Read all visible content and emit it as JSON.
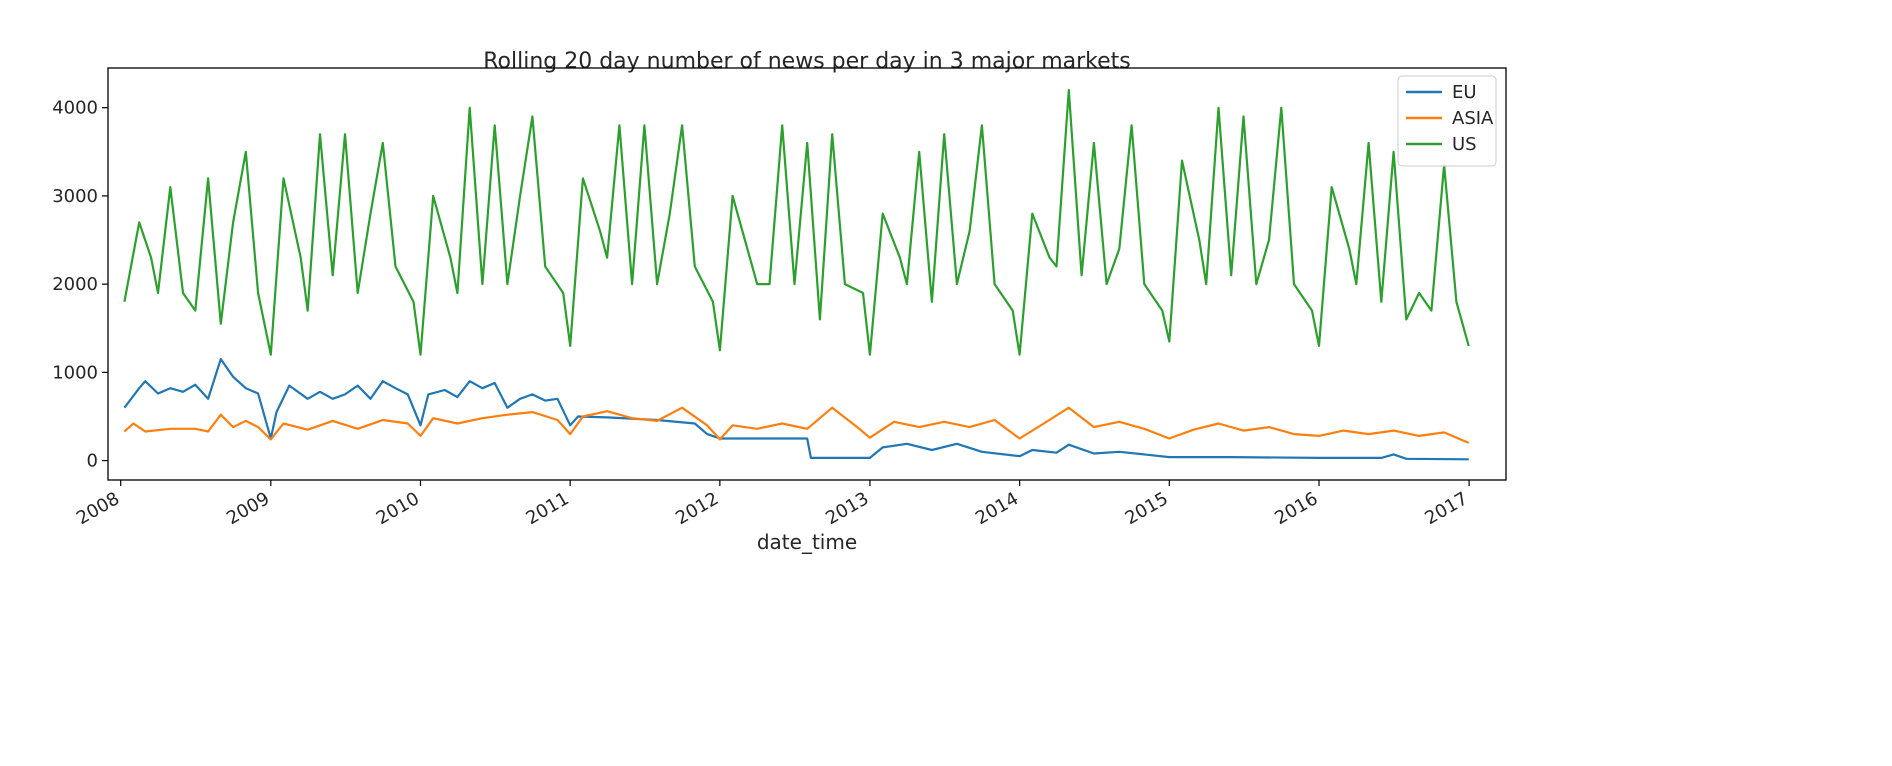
{
  "chart_data": {
    "type": "line",
    "title": "Rolling 20 day number of news per day in 3 major markets",
    "xlabel": "date_time",
    "ylabel": "",
    "x_ticks": [
      "2008",
      "2009",
      "2010",
      "2011",
      "2012",
      "2013",
      "2014",
      "2015",
      "2016",
      "2017"
    ],
    "y_ticks": [
      0,
      1000,
      2000,
      3000,
      4000
    ],
    "xlim": [
      "2007-12-01",
      "2017-04-01"
    ],
    "ylim": [
      -220,
      4450
    ],
    "grid": false,
    "legend_position": "top-right",
    "series": [
      {
        "name": "EU",
        "color": "#1f77b4",
        "points": [
          [
            "2008-01-10",
            600
          ],
          [
            "2008-02-15",
            820
          ],
          [
            "2008-03-01",
            900
          ],
          [
            "2008-04-01",
            760
          ],
          [
            "2008-05-01",
            820
          ],
          [
            "2008-06-01",
            780
          ],
          [
            "2008-07-01",
            860
          ],
          [
            "2008-08-01",
            700
          ],
          [
            "2008-09-01",
            1150
          ],
          [
            "2008-10-01",
            950
          ],
          [
            "2008-11-01",
            820
          ],
          [
            "2008-12-01",
            760
          ],
          [
            "2009-01-01",
            250
          ],
          [
            "2009-01-15",
            550
          ],
          [
            "2009-02-15",
            850
          ],
          [
            "2009-04-01",
            700
          ],
          [
            "2009-05-01",
            780
          ],
          [
            "2009-06-01",
            700
          ],
          [
            "2009-07-01",
            750
          ],
          [
            "2009-08-01",
            850
          ],
          [
            "2009-09-01",
            700
          ],
          [
            "2009-10-01",
            900
          ],
          [
            "2009-11-01",
            820
          ],
          [
            "2009-12-01",
            750
          ],
          [
            "2010-01-01",
            400
          ],
          [
            "2010-01-20",
            750
          ],
          [
            "2010-03-01",
            800
          ],
          [
            "2010-04-01",
            720
          ],
          [
            "2010-05-01",
            900
          ],
          [
            "2010-06-01",
            820
          ],
          [
            "2010-07-01",
            880
          ],
          [
            "2010-08-01",
            600
          ],
          [
            "2010-09-01",
            700
          ],
          [
            "2010-10-01",
            750
          ],
          [
            "2010-11-01",
            680
          ],
          [
            "2010-12-01",
            700
          ],
          [
            "2011-01-01",
            400
          ],
          [
            "2011-01-20",
            500
          ],
          [
            "2011-04-01",
            490
          ],
          [
            "2011-08-01",
            460
          ],
          [
            "2011-11-01",
            420
          ],
          [
            "2011-12-01",
            300
          ],
          [
            "2012-01-01",
            250
          ],
          [
            "2012-08-01",
            250
          ],
          [
            "2012-08-10",
            30
          ],
          [
            "2013-01-01",
            30
          ],
          [
            "2013-02-01",
            150
          ],
          [
            "2013-04-01",
            190
          ],
          [
            "2013-06-01",
            120
          ],
          [
            "2013-08-01",
            190
          ],
          [
            "2013-10-01",
            100
          ],
          [
            "2014-01-01",
            50
          ],
          [
            "2014-02-01",
            120
          ],
          [
            "2014-04-01",
            90
          ],
          [
            "2014-05-01",
            180
          ],
          [
            "2014-07-01",
            80
          ],
          [
            "2014-09-01",
            100
          ],
          [
            "2015-01-01",
            40
          ],
          [
            "2015-06-01",
            40
          ],
          [
            "2016-01-01",
            30
          ],
          [
            "2016-06-01",
            30
          ],
          [
            "2016-07-01",
            70
          ],
          [
            "2016-08-01",
            20
          ],
          [
            "2016-12-31",
            15
          ]
        ]
      },
      {
        "name": "ASIA",
        "color": "#ff7f0e",
        "points": [
          [
            "2008-01-10",
            330
          ],
          [
            "2008-02-01",
            420
          ],
          [
            "2008-03-01",
            330
          ],
          [
            "2008-05-01",
            360
          ],
          [
            "2008-07-01",
            360
          ],
          [
            "2008-08-01",
            330
          ],
          [
            "2008-09-01",
            520
          ],
          [
            "2008-10-01",
            380
          ],
          [
            "2008-11-01",
            450
          ],
          [
            "2008-12-01",
            380
          ],
          [
            "2009-01-01",
            240
          ],
          [
            "2009-02-01",
            420
          ],
          [
            "2009-04-01",
            350
          ],
          [
            "2009-06-01",
            450
          ],
          [
            "2009-08-01",
            360
          ],
          [
            "2009-10-01",
            460
          ],
          [
            "2009-12-01",
            420
          ],
          [
            "2010-01-01",
            280
          ],
          [
            "2010-02-01",
            480
          ],
          [
            "2010-04-01",
            420
          ],
          [
            "2010-06-01",
            480
          ],
          [
            "2010-08-01",
            520
          ],
          [
            "2010-10-01",
            550
          ],
          [
            "2010-12-01",
            460
          ],
          [
            "2011-01-01",
            300
          ],
          [
            "2011-02-01",
            500
          ],
          [
            "2011-04-01",
            560
          ],
          [
            "2011-06-01",
            480
          ],
          [
            "2011-08-01",
            450
          ],
          [
            "2011-10-01",
            600
          ],
          [
            "2011-12-01",
            400
          ],
          [
            "2012-01-01",
            240
          ],
          [
            "2012-02-01",
            400
          ],
          [
            "2012-04-01",
            360
          ],
          [
            "2012-06-01",
            420
          ],
          [
            "2012-08-01",
            360
          ],
          [
            "2012-10-01",
            600
          ],
          [
            "2012-12-01",
            380
          ],
          [
            "2013-01-01",
            260
          ],
          [
            "2013-03-01",
            440
          ],
          [
            "2013-05-01",
            380
          ],
          [
            "2013-07-01",
            440
          ],
          [
            "2013-09-01",
            380
          ],
          [
            "2013-11-01",
            460
          ],
          [
            "2014-01-01",
            250
          ],
          [
            "2014-03-01",
            420
          ],
          [
            "2014-05-01",
            600
          ],
          [
            "2014-07-01",
            380
          ],
          [
            "2014-09-01",
            440
          ],
          [
            "2014-11-01",
            360
          ],
          [
            "2015-01-01",
            250
          ],
          [
            "2015-03-01",
            350
          ],
          [
            "2015-05-01",
            420
          ],
          [
            "2015-07-01",
            340
          ],
          [
            "2015-09-01",
            380
          ],
          [
            "2015-11-01",
            300
          ],
          [
            "2016-01-01",
            280
          ],
          [
            "2016-03-01",
            340
          ],
          [
            "2016-05-01",
            300
          ],
          [
            "2016-07-01",
            340
          ],
          [
            "2016-09-01",
            280
          ],
          [
            "2016-11-01",
            320
          ],
          [
            "2016-12-31",
            200
          ]
        ]
      },
      {
        "name": "US",
        "color": "#2ca02c",
        "points": [
          [
            "2008-01-10",
            1800
          ],
          [
            "2008-02-15",
            2700
          ],
          [
            "2008-03-15",
            2300
          ],
          [
            "2008-04-01",
            1900
          ],
          [
            "2008-05-01",
            3100
          ],
          [
            "2008-06-01",
            1900
          ],
          [
            "2008-07-01",
            1700
          ],
          [
            "2008-08-01",
            3200
          ],
          [
            "2008-09-01",
            1550
          ],
          [
            "2008-10-01",
            2700
          ],
          [
            "2008-11-01",
            3500
          ],
          [
            "2008-12-01",
            1900
          ],
          [
            "2009-01-01",
            1200
          ],
          [
            "2009-02-01",
            3200
          ],
          [
            "2009-03-15",
            2300
          ],
          [
            "2009-04-01",
            1700
          ],
          [
            "2009-05-01",
            3700
          ],
          [
            "2009-06-01",
            2100
          ],
          [
            "2009-07-01",
            3700
          ],
          [
            "2009-08-01",
            1900
          ],
          [
            "2009-09-01",
            2800
          ],
          [
            "2009-10-01",
            3600
          ],
          [
            "2009-11-01",
            2200
          ],
          [
            "2009-12-15",
            1800
          ],
          [
            "2010-01-01",
            1200
          ],
          [
            "2010-02-01",
            3000
          ],
          [
            "2010-03-15",
            2300
          ],
          [
            "2010-04-01",
            1900
          ],
          [
            "2010-05-01",
            4000
          ],
          [
            "2010-06-01",
            2000
          ],
          [
            "2010-07-01",
            3800
          ],
          [
            "2010-08-01",
            2000
          ],
          [
            "2010-09-01",
            3000
          ],
          [
            "2010-10-01",
            3900
          ],
          [
            "2010-11-01",
            2200
          ],
          [
            "2010-12-15",
            1900
          ],
          [
            "2011-01-01",
            1300
          ],
          [
            "2011-02-01",
            3200
          ],
          [
            "2011-03-15",
            2600
          ],
          [
            "2011-04-01",
            2300
          ],
          [
            "2011-05-01",
            3800
          ],
          [
            "2011-06-01",
            2000
          ],
          [
            "2011-07-01",
            3800
          ],
          [
            "2011-08-01",
            2000
          ],
          [
            "2011-09-01",
            2800
          ],
          [
            "2011-10-01",
            3800
          ],
          [
            "2011-11-01",
            2200
          ],
          [
            "2011-12-15",
            1800
          ],
          [
            "2012-01-01",
            1250
          ],
          [
            "2012-02-01",
            3000
          ],
          [
            "2012-04-01",
            2000
          ],
          [
            "2012-05-01",
            2000
          ],
          [
            "2012-06-01",
            3800
          ],
          [
            "2012-07-01",
            2000
          ],
          [
            "2012-08-01",
            3600
          ],
          [
            "2012-09-01",
            1600
          ],
          [
            "2012-10-01",
            3700
          ],
          [
            "2012-11-01",
            2000
          ],
          [
            "2012-12-15",
            1900
          ],
          [
            "2013-01-01",
            1200
          ],
          [
            "2013-02-01",
            2800
          ],
          [
            "2013-03-15",
            2300
          ],
          [
            "2013-04-01",
            2000
          ],
          [
            "2013-05-01",
            3500
          ],
          [
            "2013-06-01",
            1800
          ],
          [
            "2013-07-01",
            3700
          ],
          [
            "2013-08-01",
            2000
          ],
          [
            "2013-09-01",
            2600
          ],
          [
            "2013-10-01",
            3800
          ],
          [
            "2013-11-01",
            2000
          ],
          [
            "2013-12-15",
            1700
          ],
          [
            "2014-01-01",
            1200
          ],
          [
            "2014-02-01",
            2800
          ],
          [
            "2014-03-15",
            2300
          ],
          [
            "2014-04-01",
            2200
          ],
          [
            "2014-05-01",
            4200
          ],
          [
            "2014-06-01",
            2100
          ],
          [
            "2014-07-01",
            3600
          ],
          [
            "2014-08-01",
            2000
          ],
          [
            "2014-09-01",
            2400
          ],
          [
            "2014-10-01",
            3800
          ],
          [
            "2014-11-01",
            2000
          ],
          [
            "2014-12-15",
            1700
          ],
          [
            "2015-01-01",
            1350
          ],
          [
            "2015-02-01",
            3400
          ],
          [
            "2015-03-15",
            2500
          ],
          [
            "2015-04-01",
            2000
          ],
          [
            "2015-05-01",
            4000
          ],
          [
            "2015-06-01",
            2100
          ],
          [
            "2015-07-01",
            3900
          ],
          [
            "2015-08-01",
            2000
          ],
          [
            "2015-09-01",
            2500
          ],
          [
            "2015-10-01",
            4000
          ],
          [
            "2015-11-01",
            2000
          ],
          [
            "2015-12-15",
            1700
          ],
          [
            "2016-01-01",
            1300
          ],
          [
            "2016-02-01",
            3100
          ],
          [
            "2016-03-15",
            2400
          ],
          [
            "2016-04-01",
            2000
          ],
          [
            "2016-05-01",
            3600
          ],
          [
            "2016-06-01",
            1800
          ],
          [
            "2016-07-01",
            3500
          ],
          [
            "2016-08-01",
            1600
          ],
          [
            "2016-09-01",
            1900
          ],
          [
            "2016-10-01",
            1700
          ],
          [
            "2016-11-01",
            3350
          ],
          [
            "2016-12-01",
            1800
          ],
          [
            "2016-12-31",
            1300
          ]
        ]
      }
    ]
  }
}
